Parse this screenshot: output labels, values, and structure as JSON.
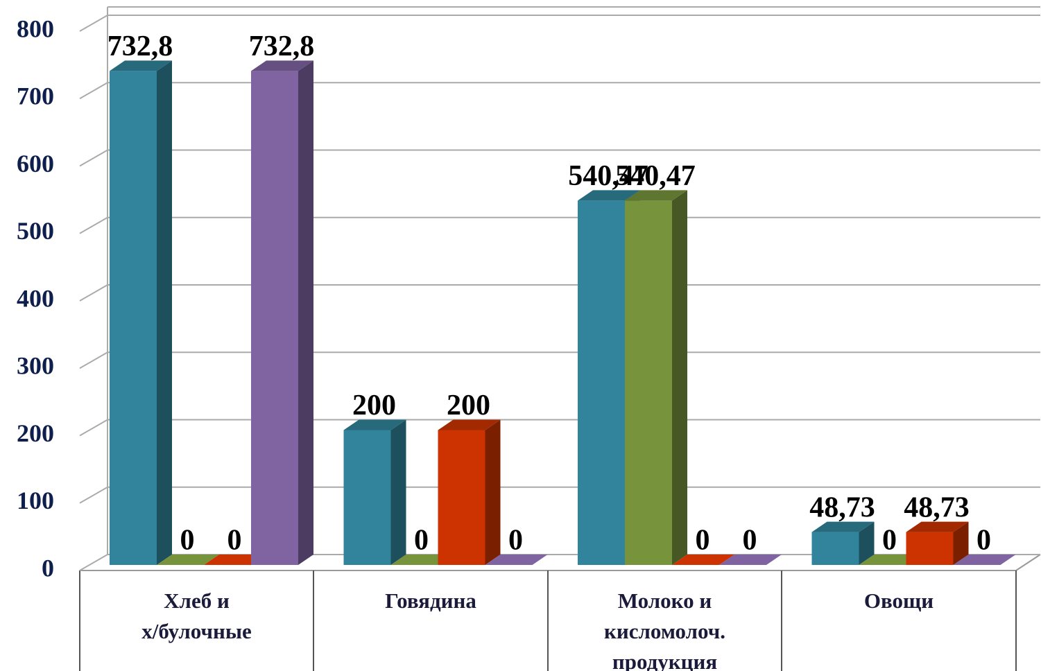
{
  "chart_data": {
    "type": "bar3d",
    "categories": [
      "Хлеб и\nх/булочные",
      "Говядина",
      "Молоко и\nкисломолоч.\nпродукция",
      "Овощи"
    ],
    "series": [
      {
        "color": "#31849b",
        "values": [
          732.8,
          200,
          540.47,
          48.73
        ],
        "value_labels": [
          "732,8",
          "200",
          "540,47",
          "48,73"
        ]
      },
      {
        "color": "#77933c",
        "values": [
          0,
          0,
          540.47,
          0
        ],
        "value_labels": [
          "0",
          "0",
          "540,47",
          "0"
        ]
      },
      {
        "color": "#cc3300",
        "values": [
          0,
          200,
          0,
          48.73
        ],
        "value_labels": [
          "0",
          "200",
          "0",
          "48,73"
        ]
      },
      {
        "color": "#8064a2",
        "values": [
          732.8,
          0,
          0,
          0
        ],
        "value_labels": [
          "732,8",
          "0",
          "0",
          "0"
        ]
      }
    ],
    "ylim": [
      0,
      800
    ],
    "yticks": [
      0,
      100,
      200,
      300,
      400,
      500,
      600,
      700,
      800
    ],
    "grid": true
  }
}
